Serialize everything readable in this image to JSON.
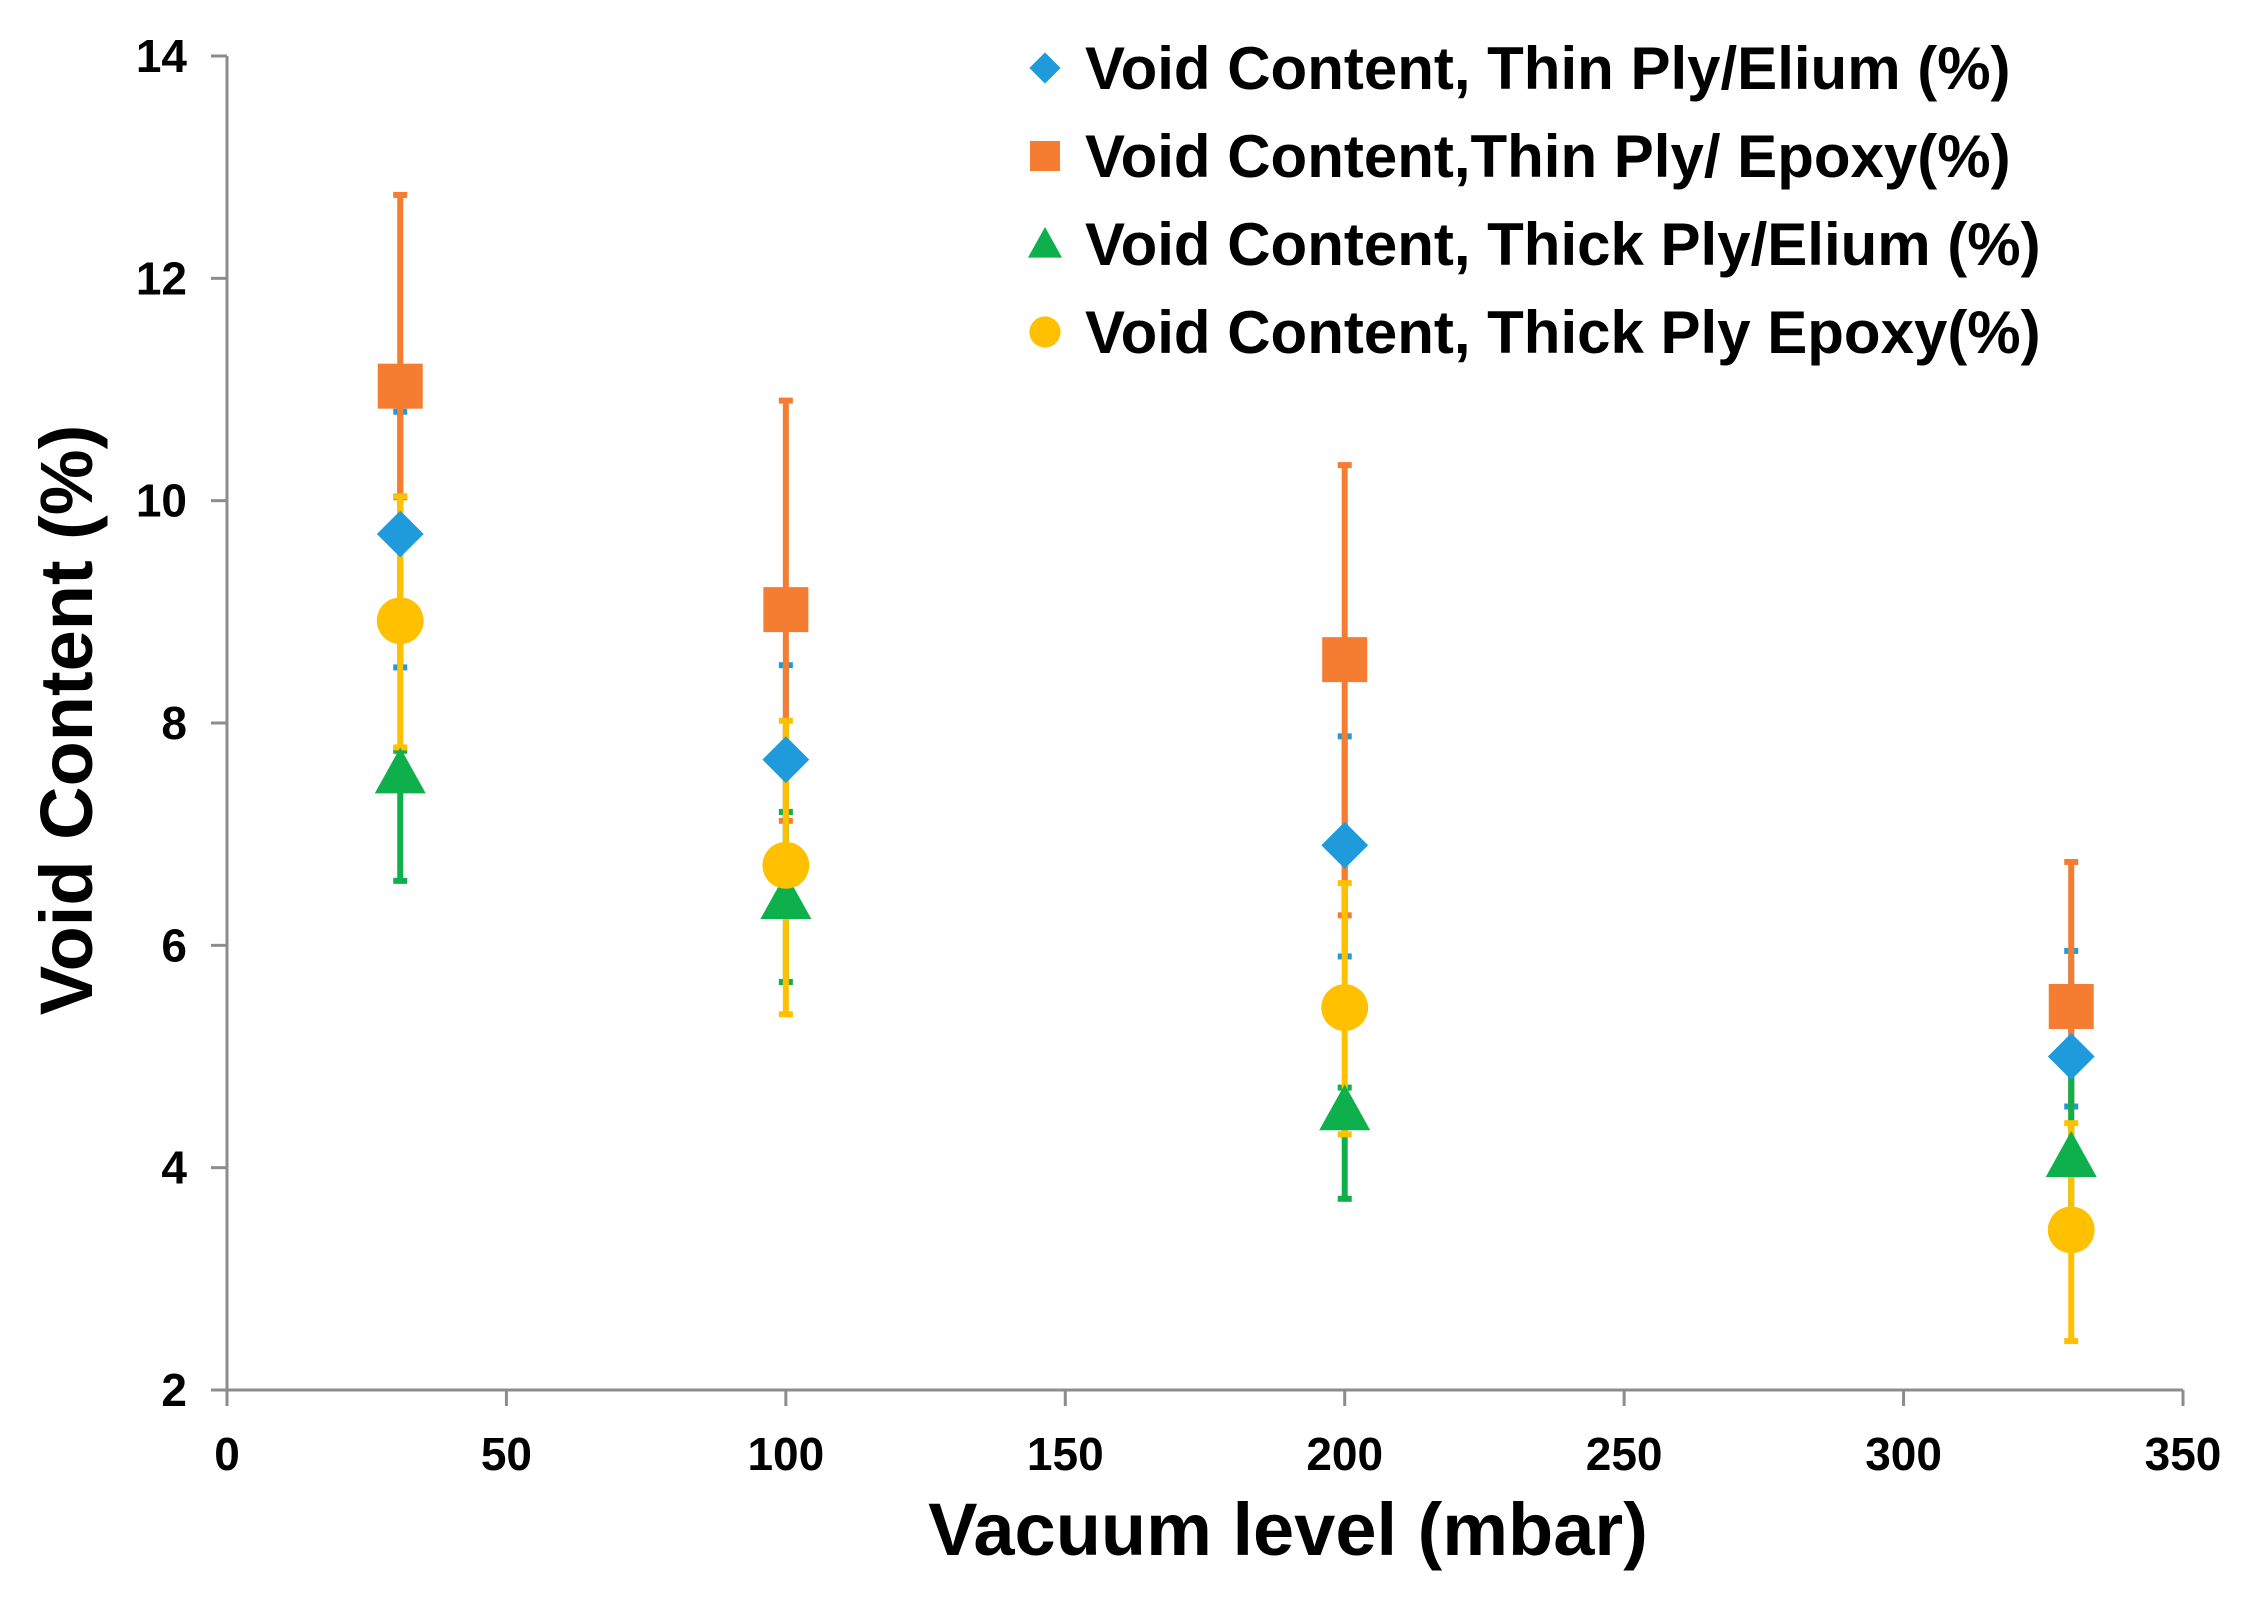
{
  "chart_data": {
    "type": "scatter",
    "title": "",
    "xlabel": "Vacuum level (mbar)",
    "ylabel": "Void Content (%)",
    "xlim": [
      0,
      350
    ],
    "ylim": [
      2,
      14
    ],
    "x_ticks": [
      0,
      50,
      100,
      150,
      200,
      250,
      300,
      350
    ],
    "y_ticks": [
      2,
      4,
      6,
      8,
      10,
      12,
      14
    ],
    "grid": false,
    "legend_position": "top-right",
    "series": [
      {
        "name": "Void Content, Thin Ply/Elium (%)",
        "marker": "diamond",
        "color": "#1F9BDB",
        "x": [
          31,
          100,
          200,
          330
        ],
        "y": [
          9.7,
          7.67,
          6.9,
          5.0
        ],
        "err_low": [
          1.2,
          1.0,
          1.0,
          0.45
        ],
        "err_high": [
          1.1,
          0.85,
          0.98,
          0.95
        ]
      },
      {
        "name": "Void Content,Thin Ply/ Epoxy(%)",
        "marker": "square",
        "color": "#F47D31",
        "x": [
          31,
          100,
          200,
          330
        ],
        "y": [
          11.03,
          9.02,
          8.57,
          5.45
        ],
        "err_low": [
          1.0,
          1.9,
          2.3,
          1.3
        ],
        "err_high": [
          1.72,
          1.88,
          1.75,
          1.3
        ]
      },
      {
        "name": "Void Content, Thick Ply/Elium (%)",
        "marker": "triangle",
        "color": "#0DB04B",
        "x": [
          31,
          100,
          200,
          330
        ],
        "y": [
          7.55,
          6.42,
          4.52,
          4.1
        ],
        "err_low": [
          0.97,
          0.75,
          0.8,
          0.8
        ],
        "err_high": [
          0.2,
          0.78,
          0.2,
          0.85
        ]
      },
      {
        "name": "Void Content, Thick Ply Epoxy(%)",
        "marker": "circle",
        "color": "#FFC000",
        "x": [
          31,
          100,
          200,
          330
        ],
        "y": [
          8.92,
          6.72,
          5.44,
          3.44
        ],
        "err_low": [
          1.14,
          1.34,
          1.14,
          1.0
        ],
        "err_high": [
          1.12,
          1.3,
          1.12,
          0.96
        ]
      }
    ]
  }
}
